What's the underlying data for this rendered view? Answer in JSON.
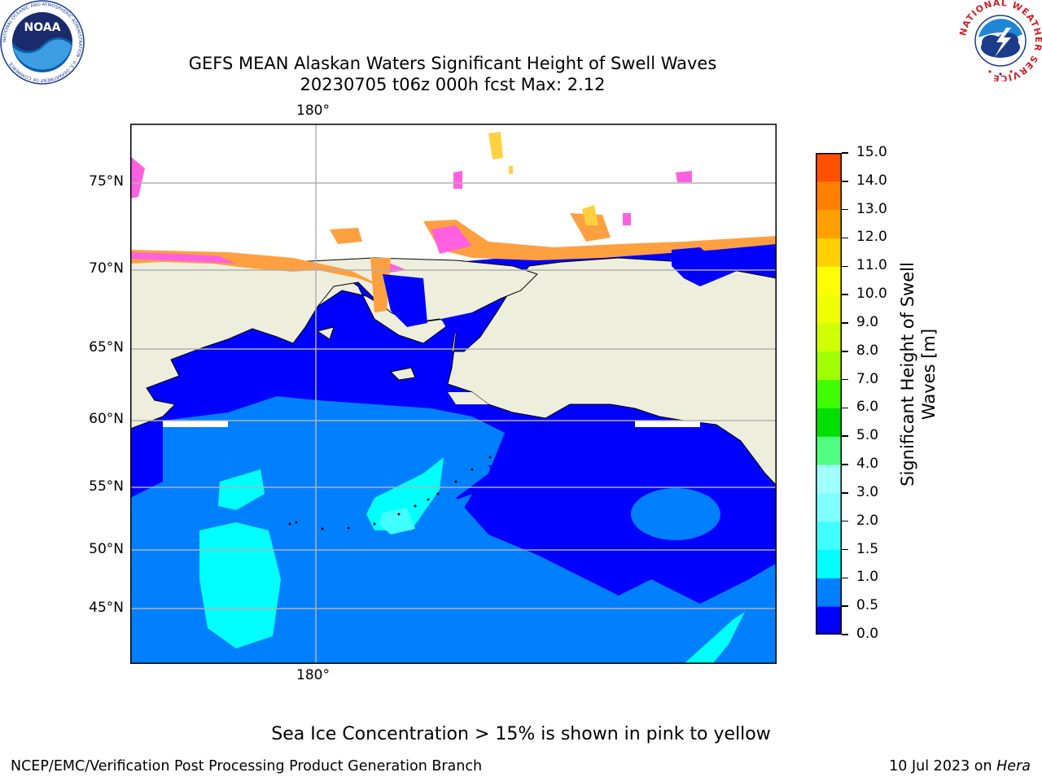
{
  "title_line1": "GEFS MEAN Alaskan Waters Significant Height of Swell Waves",
  "title_line2": "20230705 t06z 000h fcst   Max: 2.12",
  "map": {
    "lon_tick_label": "180°",
    "lat_ticks": [
      "75°N",
      "70°N",
      "65°N",
      "60°N",
      "55°N",
      "50°N",
      "45°N"
    ],
    "ocean_color": "#0000ff",
    "land_color": "#eeeedc"
  },
  "colorbar": {
    "label_line1": "Significant Height of Swell",
    "label_line2": "Waves [m]",
    "ticks": [
      "15.0",
      "14.0",
      "13.0",
      "12.0",
      "11.0",
      "10.0",
      "9.0",
      "8.0",
      "7.0",
      "6.0",
      "5.0",
      "4.0",
      "3.0",
      "2.0",
      "1.5",
      "1.0",
      "0.5",
      "0.0"
    ],
    "colors": [
      "#0000ff",
      "#0080ff",
      "#00ffff",
      "#40ffff",
      "#80ffff",
      "#a0ffff",
      "#50ff80",
      "#00e000",
      "#40ff00",
      "#a0ff00",
      "#d0ff00",
      "#f0ff00",
      "#ffff00",
      "#ffd000",
      "#ffa000",
      "#ff8000",
      "#ff5000",
      "#ff2000",
      "#ff0000"
    ]
  },
  "logos": {
    "noaa_text": "NOAA",
    "noaa_ring": "NATIONAL OCEANIC AND ATMOSPHERIC ADMINISTRATION · U.S. DEPARTMENT OF COMMERCE",
    "nws_ring": "NATIONAL WEATHER SERVICE"
  },
  "note": "Sea Ice Concentration > 15% is shown in pink to yellow",
  "footer_left": "NCEP/EMC/Verification Post Processing Product Generation Branch",
  "footer_right_prefix": "10 Jul 2023 on ",
  "footer_right_machine": "Hera"
}
